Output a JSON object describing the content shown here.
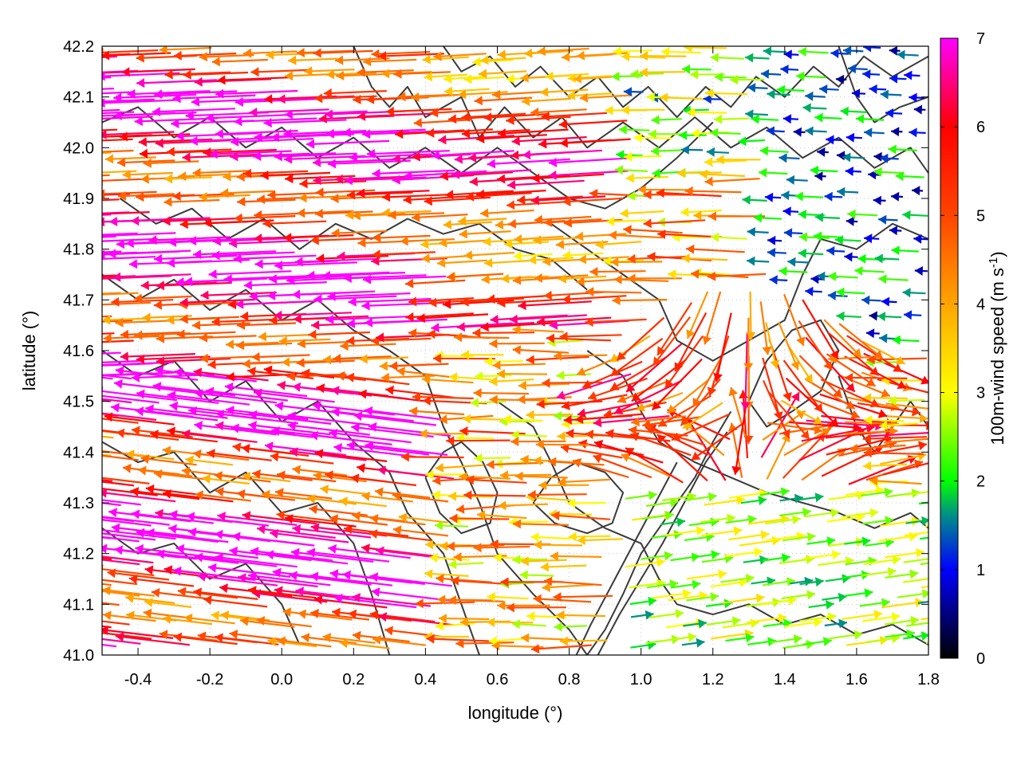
{
  "chart_data": {
    "type": "vector-field",
    "xlabel": "longitude (°)",
    "ylabel": "latitude (°)",
    "xlim": [
      -0.5,
      1.8
    ],
    "ylim": [
      41.0,
      42.2
    ],
    "xticks": [
      -0.4,
      -0.2,
      0.0,
      0.2,
      0.4,
      0.6,
      0.8,
      1.0,
      1.2,
      1.4,
      1.6,
      1.8
    ],
    "xtick_labels": [
      "-0.4",
      "-0.2",
      "0.0",
      "0.2",
      "0.4",
      "0.6",
      "0.8",
      "1.0",
      "1.2",
      "1.4",
      "1.6",
      "1.8"
    ],
    "yticks": [
      41.0,
      41.1,
      41.2,
      41.3,
      41.4,
      41.5,
      41.6,
      41.7,
      41.8,
      41.9,
      42.0,
      42.1,
      42.2
    ],
    "ytick_labels": [
      "41.0",
      "41.1",
      "41.2",
      "41.3",
      "41.4",
      "41.5",
      "41.6",
      "41.7",
      "41.8",
      "41.9",
      "42.0",
      "42.1",
      "42.2"
    ],
    "grid": true,
    "colorbar": {
      "label_main": "100m-wind speed (m s",
      "label_sup": "-1",
      "label_close": ")",
      "range": [
        0,
        7
      ],
      "ticks": [
        0,
        1,
        2,
        3,
        4,
        5,
        6,
        7
      ],
      "tick_labels": [
        "0",
        "1",
        "2",
        "3",
        "4",
        "5",
        "6",
        "7"
      ],
      "stops": [
        {
          "v": 0.0,
          "color": "#000000"
        },
        {
          "v": 1.0,
          "color": "#0000ff"
        },
        {
          "v": 1.6,
          "color": "#008b8b"
        },
        {
          "v": 2.0,
          "color": "#00ff00"
        },
        {
          "v": 3.0,
          "color": "#ffff00"
        },
        {
          "v": 4.0,
          "color": "#ffa500"
        },
        {
          "v": 5.0,
          "color": "#ff4500"
        },
        {
          "v": 6.0,
          "color": "#ff0000"
        },
        {
          "v": 7.0,
          "color": "#ff00ff"
        }
      ]
    },
    "contours": [
      [
        [
          -0.45,
          41.9
        ],
        [
          -0.35,
          41.85
        ],
        [
          -0.25,
          41.88
        ],
        [
          -0.15,
          41.82
        ],
        [
          -0.05,
          41.86
        ],
        [
          0.05,
          41.8
        ],
        [
          0.15,
          41.85
        ],
        [
          0.25,
          41.82
        ],
        [
          0.35,
          41.86
        ],
        [
          0.45,
          41.83
        ],
        [
          0.55,
          41.85
        ],
        [
          0.65,
          41.8
        ],
        [
          0.75,
          41.78
        ],
        [
          0.85,
          41.72
        ]
      ],
      [
        [
          -0.5,
          41.75
        ],
        [
          -0.4,
          41.7
        ],
        [
          -0.3,
          41.74
        ],
        [
          -0.2,
          41.68
        ],
        [
          -0.1,
          41.72
        ],
        [
          0.0,
          41.66
        ],
        [
          0.1,
          41.7
        ],
        [
          0.2,
          41.64
        ],
        [
          0.3,
          41.6
        ],
        [
          0.4,
          41.55
        ],
        [
          0.45,
          41.45
        ],
        [
          0.5,
          41.38
        ],
        [
          0.55,
          41.3
        ],
        [
          0.6,
          41.2
        ],
        [
          0.7,
          41.12
        ],
        [
          0.8,
          41.05
        ],
        [
          0.85,
          41.0
        ]
      ],
      [
        [
          -0.5,
          41.6
        ],
        [
          -0.4,
          41.55
        ],
        [
          -0.3,
          41.58
        ],
        [
          -0.2,
          41.5
        ],
        [
          -0.1,
          41.54
        ],
        [
          0.0,
          41.46
        ],
        [
          0.1,
          41.5
        ],
        [
          0.2,
          41.42
        ],
        [
          0.3,
          41.36
        ],
        [
          0.35,
          41.28
        ],
        [
          0.45,
          41.2
        ],
        [
          0.5,
          41.1
        ],
        [
          0.55,
          41.0
        ]
      ],
      [
        [
          -0.5,
          41.42
        ],
        [
          -0.4,
          41.38
        ],
        [
          -0.3,
          41.4
        ],
        [
          -0.2,
          41.32
        ],
        [
          -0.1,
          41.36
        ],
        [
          0.0,
          41.28
        ],
        [
          0.1,
          41.3
        ],
        [
          0.2,
          41.22
        ],
        [
          0.25,
          41.12
        ],
        [
          0.3,
          41.0
        ]
      ],
      [
        [
          -0.5,
          41.25
        ],
        [
          -0.4,
          41.2
        ],
        [
          -0.3,
          41.22
        ],
        [
          -0.2,
          41.15
        ],
        [
          -0.1,
          41.18
        ],
        [
          0.0,
          41.1
        ],
        [
          0.05,
          41.02
        ]
      ],
      [
        [
          -0.5,
          42.05
        ],
        [
          -0.4,
          42.08
        ],
        [
          -0.3,
          42.02
        ],
        [
          -0.2,
          42.06
        ],
        [
          -0.1,
          42.0
        ],
        [
          0.0,
          42.04
        ],
        [
          0.1,
          41.98
        ],
        [
          0.2,
          42.02
        ],
        [
          0.3,
          41.96
        ],
        [
          0.4,
          42.0
        ],
        [
          0.5,
          41.95
        ],
        [
          0.6,
          42.0
        ],
        [
          0.7,
          41.95
        ],
        [
          0.8,
          41.9
        ],
        [
          0.9,
          41.88
        ],
        [
          1.0,
          41.92
        ],
        [
          1.1,
          41.98
        ],
        [
          1.2,
          42.05
        ]
      ],
      [
        [
          0.2,
          42.2
        ],
        [
          0.25,
          42.12
        ],
        [
          0.3,
          42.08
        ],
        [
          0.35,
          42.12
        ],
        [
          0.4,
          42.06
        ],
        [
          0.5,
          42.1
        ],
        [
          0.55,
          42.02
        ],
        [
          0.62,
          42.08
        ],
        [
          0.7,
          42.02
        ],
        [
          0.78,
          42.06
        ],
        [
          0.85,
          42.0
        ],
        [
          0.95,
          42.05
        ],
        [
          1.05,
          42.0
        ],
        [
          1.15,
          42.06
        ],
        [
          1.25,
          42.0
        ],
        [
          1.35,
          42.04
        ],
        [
          1.45,
          41.98
        ],
        [
          1.55,
          42.02
        ],
        [
          1.65,
          41.96
        ],
        [
          1.75,
          42.0
        ],
        [
          1.8,
          41.95
        ]
      ],
      [
        [
          0.45,
          42.2
        ],
        [
          0.5,
          42.15
        ],
        [
          0.58,
          42.18
        ],
        [
          0.65,
          42.12
        ],
        [
          0.72,
          42.16
        ],
        [
          0.8,
          42.1
        ],
        [
          0.88,
          42.14
        ],
        [
          0.95,
          42.08
        ],
        [
          1.02,
          42.12
        ],
        [
          1.1,
          42.06
        ],
        [
          1.18,
          42.12
        ],
        [
          1.25,
          42.08
        ],
        [
          1.32,
          42.14
        ],
        [
          1.4,
          42.1
        ],
        [
          1.48,
          42.16
        ],
        [
          1.55,
          42.12
        ],
        [
          1.62,
          42.18
        ],
        [
          1.7,
          42.14
        ],
        [
          1.8,
          42.18
        ]
      ],
      [
        [
          0.75,
          41.85
        ],
        [
          0.85,
          41.8
        ],
        [
          0.95,
          41.75
        ],
        [
          1.05,
          41.7
        ],
        [
          1.1,
          41.62
        ],
        [
          1.2,
          41.58
        ],
        [
          1.3,
          41.62
        ],
        [
          1.4,
          41.66
        ],
        [
          1.45,
          41.75
        ],
        [
          1.5,
          41.82
        ],
        [
          1.6,
          41.8
        ],
        [
          1.7,
          41.85
        ],
        [
          1.8,
          41.82
        ]
      ],
      [
        [
          0.85,
          41.6
        ],
        [
          0.95,
          41.55
        ],
        [
          1.0,
          41.48
        ],
        [
          1.05,
          41.42
        ],
        [
          1.15,
          41.38
        ],
        [
          1.25,
          41.35
        ],
        [
          1.35,
          41.32
        ],
        [
          1.45,
          41.3
        ],
        [
          1.55,
          41.28
        ],
        [
          1.65,
          41.25
        ],
        [
          1.75,
          41.28
        ],
        [
          1.8,
          41.25
        ]
      ],
      [
        [
          0.6,
          41.5
        ],
        [
          0.7,
          41.45
        ],
        [
          0.75,
          41.38
        ],
        [
          0.8,
          41.3
        ],
        [
          0.9,
          41.25
        ],
        [
          1.0,
          41.22
        ],
        [
          1.05,
          41.15
        ],
        [
          1.1,
          41.1
        ],
        [
          1.2,
          41.08
        ],
        [
          1.3,
          41.1
        ],
        [
          1.4,
          41.06
        ],
        [
          1.5,
          41.08
        ],
        [
          1.6,
          41.04
        ],
        [
          1.7,
          41.06
        ],
        [
          1.8,
          41.02
        ]
      ],
      [
        [
          0.85,
          41.0
        ],
        [
          0.9,
          41.05
        ],
        [
          0.95,
          41.12
        ],
        [
          1.0,
          41.2
        ],
        [
          1.08,
          41.28
        ],
        [
          1.15,
          41.35
        ],
        [
          1.2,
          41.42
        ],
        [
          1.25,
          41.48
        ]
      ],
      [
        [
          0.88,
          41.0
        ],
        [
          0.94,
          41.08
        ],
        [
          1.0,
          41.15
        ],
        [
          1.06,
          41.22
        ],
        [
          1.12,
          41.3
        ],
        [
          1.18,
          41.38
        ],
        [
          1.24,
          41.44
        ]
      ],
      [
        [
          0.82,
          41.0
        ],
        [
          0.86,
          41.06
        ],
        [
          0.92,
          41.14
        ],
        [
          0.98,
          41.22
        ],
        [
          1.04,
          41.3
        ],
        [
          1.1,
          41.38
        ]
      ],
      [
        [
          0.7,
          41.3
        ],
        [
          0.75,
          41.35
        ],
        [
          0.82,
          41.38
        ],
        [
          0.9,
          41.36
        ],
        [
          0.95,
          41.32
        ],
        [
          0.92,
          41.26
        ],
        [
          0.85,
          41.24
        ],
        [
          0.76,
          41.26
        ],
        [
          0.7,
          41.3
        ]
      ],
      [
        [
          1.55,
          41.55
        ],
        [
          1.6,
          41.45
        ],
        [
          1.65,
          41.4
        ],
        [
          1.7,
          41.45
        ],
        [
          1.75,
          41.5
        ],
        [
          1.8,
          41.45
        ]
      ],
      [
        [
          1.3,
          41.5
        ],
        [
          1.35,
          41.45
        ],
        [
          1.42,
          41.48
        ],
        [
          1.5,
          41.52
        ],
        [
          1.55,
          41.6
        ],
        [
          1.5,
          41.66
        ],
        [
          1.42,
          41.64
        ],
        [
          1.35,
          41.58
        ],
        [
          1.3,
          41.5
        ]
      ],
      [
        [
          1.55,
          42.2
        ],
        [
          1.6,
          42.1
        ],
        [
          1.65,
          42.05
        ],
        [
          1.72,
          42.08
        ],
        [
          1.8,
          42.1
        ]
      ],
      [
        [
          0.4,
          41.35
        ],
        [
          0.45,
          41.4
        ],
        [
          0.5,
          41.42
        ],
        [
          0.56,
          41.38
        ],
        [
          0.6,
          41.32
        ],
        [
          0.58,
          41.26
        ],
        [
          0.5,
          41.24
        ],
        [
          0.44,
          41.28
        ],
        [
          0.4,
          41.35
        ]
      ]
    ]
  }
}
